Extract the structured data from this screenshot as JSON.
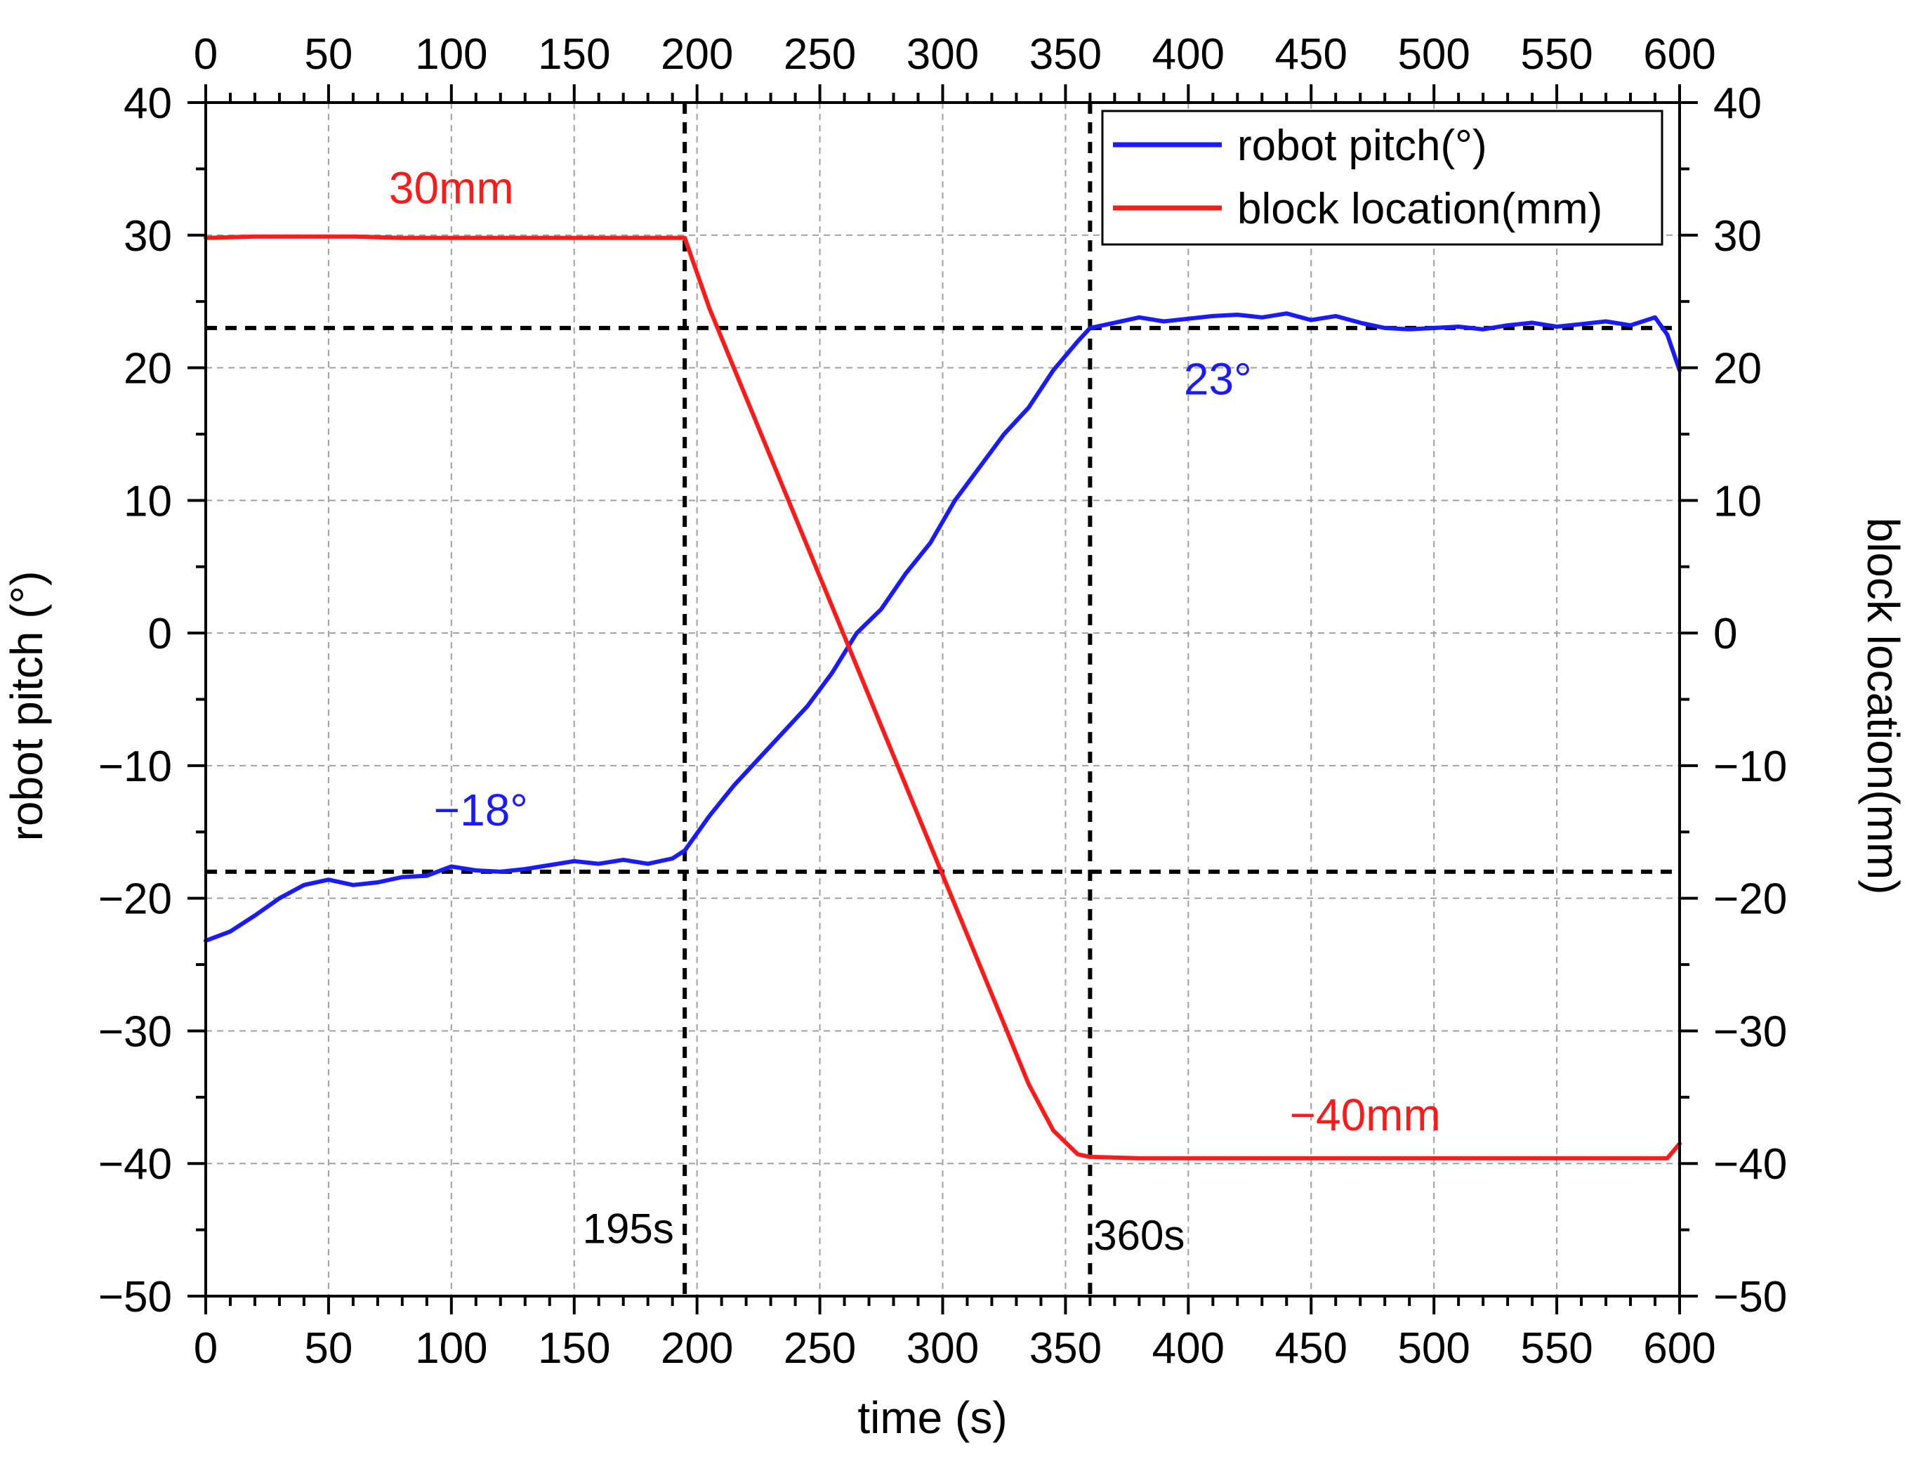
{
  "chart_data": {
    "type": "line",
    "xlabel": "time (s)",
    "ylabel_left": "robot pitch (°)",
    "ylabel_right": "block location(mm)",
    "xlim": [
      0,
      600
    ],
    "ylim": [
      -50,
      40
    ],
    "x_ticks": [
      "0",
      "50",
      "100",
      "150",
      "200",
      "250",
      "300",
      "350",
      "400",
      "450",
      "500",
      "550",
      "600"
    ],
    "y_ticks": [
      "40",
      "30",
      "20",
      "10",
      "0",
      "−10",
      "−20",
      "−30",
      "−40",
      "−50"
    ],
    "grid": true,
    "legend_position": "top-right",
    "series": [
      {
        "name": "robot pitch(°)",
        "color": "#1a1aff",
        "x": [
          0,
          10,
          20,
          30,
          40,
          50,
          60,
          70,
          80,
          90,
          100,
          110,
          120,
          130,
          140,
          150,
          160,
          170,
          180,
          190,
          195,
          205,
          215,
          225,
          235,
          245,
          255,
          265,
          275,
          285,
          295,
          305,
          315,
          325,
          335,
          345,
          355,
          360,
          370,
          380,
          390,
          400,
          410,
          420,
          430,
          440,
          450,
          460,
          470,
          480,
          490,
          500,
          510,
          520,
          530,
          540,
          550,
          560,
          570,
          580,
          590,
          595,
          600
        ],
        "y": [
          -23.2,
          -22.5,
          -21.3,
          -20.0,
          -19.0,
          -18.6,
          -19.0,
          -18.8,
          -18.4,
          -18.3,
          -17.6,
          -17.9,
          -18.0,
          -17.8,
          -17.5,
          -17.2,
          -17.4,
          -17.1,
          -17.4,
          -17.0,
          -16.4,
          -13.8,
          -11.5,
          -9.5,
          -7.5,
          -5.5,
          -3.0,
          0.0,
          1.8,
          4.5,
          6.8,
          10.0,
          12.5,
          15.0,
          17.0,
          19.8,
          22.0,
          23.0,
          23.4,
          23.8,
          23.5,
          23.7,
          23.9,
          24.0,
          23.8,
          24.1,
          23.6,
          23.9,
          23.4,
          23.0,
          22.9,
          23.0,
          23.1,
          22.9,
          23.2,
          23.4,
          23.1,
          23.3,
          23.5,
          23.2,
          23.8,
          22.5,
          19.8
        ]
      },
      {
        "name": "block location(mm)",
        "color": "#ff1a1a",
        "x": [
          0,
          20,
          40,
          60,
          80,
          100,
          120,
          140,
          160,
          180,
          195,
          205,
          215,
          225,
          235,
          245,
          255,
          265,
          275,
          285,
          295,
          305,
          315,
          325,
          335,
          345,
          355,
          360,
          380,
          400,
          450,
          500,
          550,
          595,
          600
        ],
        "y": [
          29.8,
          29.9,
          29.9,
          29.9,
          29.8,
          29.8,
          29.8,
          29.8,
          29.8,
          29.8,
          29.8,
          24.5,
          20.0,
          15.5,
          11.0,
          6.5,
          2.0,
          -2.5,
          -7.0,
          -11.5,
          -16.0,
          -20.5,
          -25.0,
          -29.5,
          -34.0,
          -37.5,
          -39.3,
          -39.5,
          -39.6,
          -39.6,
          -39.6,
          -39.6,
          -39.6,
          -39.6,
          -38.5
        ]
      }
    ],
    "reference_lines": [
      {
        "orientation": "horizontal",
        "value": 23
      },
      {
        "orientation": "horizontal",
        "value": -18
      },
      {
        "orientation": "vertical",
        "value": 195
      },
      {
        "orientation": "vertical",
        "value": 360
      }
    ],
    "annotations": [
      {
        "text": "30mm",
        "x": 100,
        "y": 32.4,
        "color": "#ff1a1a"
      },
      {
        "text": "−18°",
        "x": 112,
        "y": -14.5,
        "color": "#1a1aff"
      },
      {
        "text": "23°",
        "x": 412,
        "y": 18.0,
        "color": "#1a1aff"
      },
      {
        "text": "−40mm",
        "x": 472,
        "y": -37.5,
        "color": "#ff1a1a"
      },
      {
        "text": "195s",
        "x": 172,
        "y": -46.0,
        "color": "#000000"
      },
      {
        "text": "360s",
        "x": 380,
        "y": -46.5,
        "color": "#000000"
      }
    ]
  }
}
